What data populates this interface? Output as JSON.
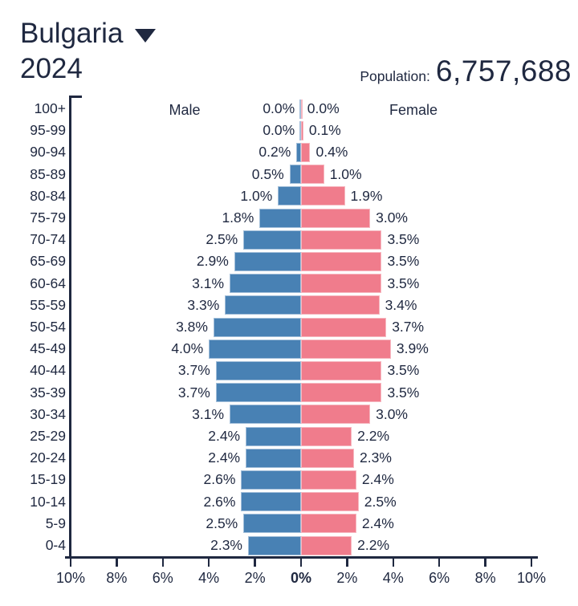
{
  "header": {
    "country": "Bulgaria",
    "year": "2024",
    "population_label": "Population:",
    "population_value": "6,757,688"
  },
  "chart_data": {
    "type": "bar",
    "subtype": "population-pyramid",
    "title": "Bulgaria 2024 population pyramid",
    "categories": [
      "100+",
      "95-99",
      "90-94",
      "85-89",
      "80-84",
      "75-79",
      "70-74",
      "65-69",
      "60-64",
      "55-59",
      "50-54",
      "45-49",
      "40-44",
      "35-39",
      "30-34",
      "25-29",
      "20-24",
      "15-19",
      "10-14",
      "5-9",
      "0-4"
    ],
    "series": [
      {
        "name": "Male",
        "values": [
          0.0,
          0.0,
          0.2,
          0.5,
          1.0,
          1.8,
          2.5,
          2.9,
          3.1,
          3.3,
          3.8,
          4.0,
          3.7,
          3.7,
          3.1,
          2.4,
          2.4,
          2.6,
          2.6,
          2.5,
          2.3
        ]
      },
      {
        "name": "Female",
        "values": [
          0.0,
          0.1,
          0.4,
          1.0,
          1.9,
          3.0,
          3.5,
          3.5,
          3.5,
          3.4,
          3.7,
          3.9,
          3.5,
          3.5,
          3.0,
          2.2,
          2.3,
          2.4,
          2.5,
          2.4,
          2.2
        ]
      }
    ],
    "unit": "%",
    "value_label_format": "one-decimal-percent",
    "x_ticks": [
      "10%",
      "8%",
      "6%",
      "4%",
      "2%",
      "0%",
      "2%",
      "4%",
      "6%",
      "8%",
      "10%"
    ],
    "x_axis_max_each_side": 10,
    "legend": {
      "male_label": "Male",
      "female_label": "Female"
    },
    "grid": false,
    "colors": {
      "male_bar": "#4881B4",
      "female_bar": "#F07C8C",
      "text_and_axis": "#1F2840"
    }
  }
}
